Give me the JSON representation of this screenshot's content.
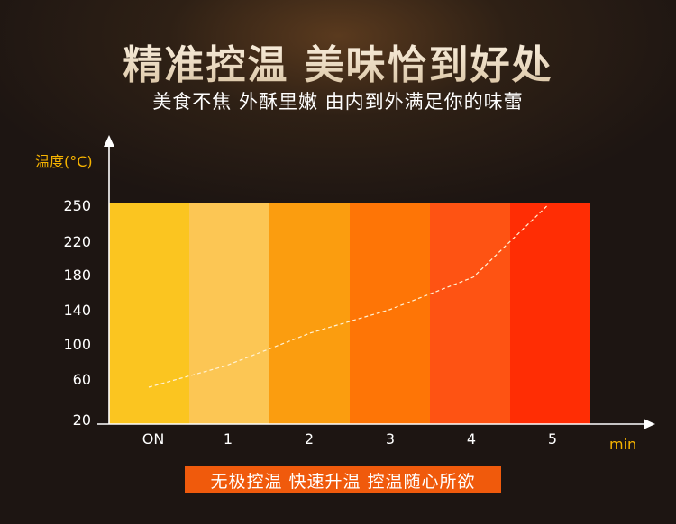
{
  "header": {
    "title": "精准控温 美味恰到好处",
    "subtitle": "美食不焦  外酥里嫩  由内到外满足你的味蕾"
  },
  "banner": {
    "text": "无极控温 快速升温 控温随心所欲"
  },
  "colors": {
    "axis": "#ffffff",
    "label_accent": "#f7b400",
    "bands": [
      "#fbc520",
      "#fcc654",
      "#fb9d0f",
      "#fe7506",
      "#fe5313",
      "#ff2d04"
    ],
    "banner": "#f05a0c"
  },
  "chart_data": {
    "type": "line",
    "ylabel": "温度(°C)",
    "xlabel": "min",
    "categories": [
      "ON",
      "1",
      "2",
      "3",
      "4",
      "5"
    ],
    "y_ticks": [
      20,
      60,
      100,
      140,
      180,
      220,
      250
    ],
    "ylim": [
      20,
      250
    ],
    "series": [
      {
        "x": [
          0,
          1,
          2,
          3,
          4,
          4.95
        ],
        "values": [
          52,
          75,
          113,
          140,
          177,
          250
        ]
      }
    ],
    "grid": false
  }
}
